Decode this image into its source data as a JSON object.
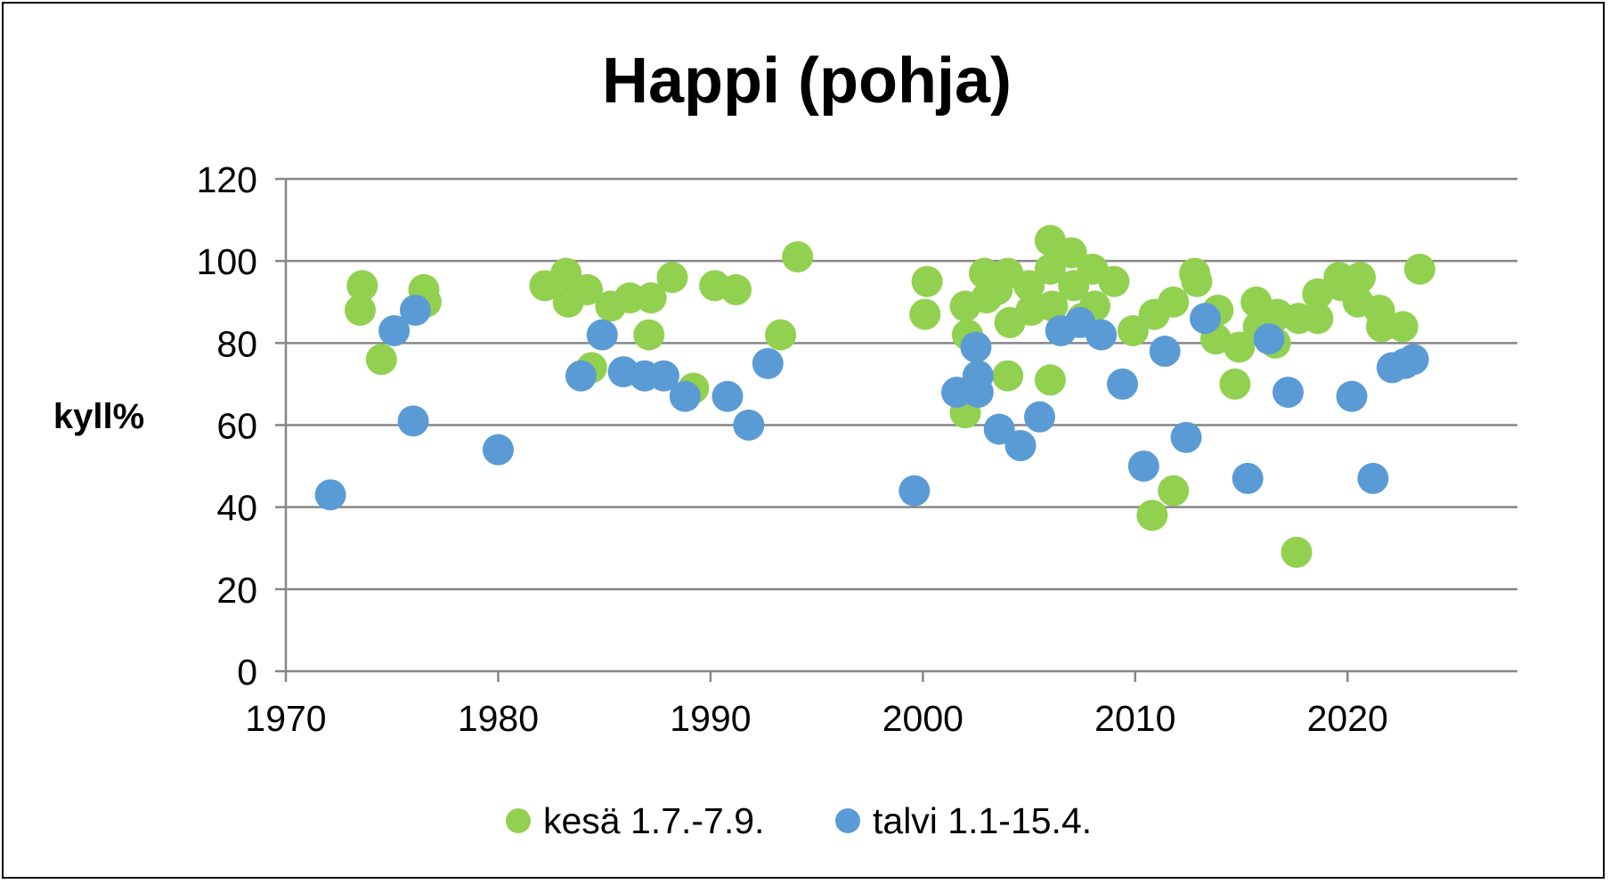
{
  "chart_data": {
    "type": "scatter",
    "title": "Happi (pohja)",
    "xlabel": "",
    "ylabel": "kyll%",
    "xlim": [
      1970,
      2028
    ],
    "ylim": [
      0,
      120
    ],
    "x_ticks": [
      "1970",
      "1980",
      "1990",
      "2000",
      "2010",
      "2020"
    ],
    "y_ticks": [
      "0",
      "20",
      "40",
      "60",
      "80",
      "100",
      "120"
    ],
    "grid": "horizontal",
    "legend_position": "bottom",
    "series": [
      {
        "name": "kesä 1.7.-7.9.",
        "color": "#92d050",
        "points": [
          [
            1973.5,
            88
          ],
          [
            1973.6,
            94
          ],
          [
            1974.5,
            76
          ],
          [
            1976.5,
            93
          ],
          [
            1976.6,
            90
          ],
          [
            1982.2,
            94
          ],
          [
            1983.2,
            97
          ],
          [
            1983.3,
            90
          ],
          [
            1984.2,
            93
          ],
          [
            1984.4,
            74
          ],
          [
            1985.3,
            89
          ],
          [
            1986.2,
            91
          ],
          [
            1987.2,
            91
          ],
          [
            1987.1,
            82
          ],
          [
            1988.2,
            96
          ],
          [
            1989.2,
            69
          ],
          [
            1990.2,
            94
          ],
          [
            1991.2,
            93
          ],
          [
            1993.3,
            82
          ],
          [
            1994.1,
            101
          ],
          [
            2000.1,
            87
          ],
          [
            2000.2,
            95
          ],
          [
            2002.0,
            89
          ],
          [
            2002.1,
            82
          ],
          [
            2002.0,
            63
          ],
          [
            2002.9,
            97
          ],
          [
            2003.0,
            91
          ],
          [
            2003.5,
            93
          ],
          [
            2004.0,
            97
          ],
          [
            2004.1,
            85
          ],
          [
            2004.0,
            72
          ],
          [
            2005.0,
            94
          ],
          [
            2005.1,
            88
          ],
          [
            2006.0,
            105
          ],
          [
            2006.0,
            98
          ],
          [
            2006.1,
            89
          ],
          [
            2006.0,
            71
          ],
          [
            2007.0,
            102
          ],
          [
            2007.1,
            94
          ],
          [
            2007.5,
            86
          ],
          [
            2008.0,
            98
          ],
          [
            2008.1,
            89
          ],
          [
            2009.0,
            95
          ],
          [
            2009.9,
            83
          ],
          [
            2010.8,
            38
          ],
          [
            2010.9,
            87
          ],
          [
            2011.8,
            90
          ],
          [
            2011.8,
            44
          ],
          [
            2012.8,
            97
          ],
          [
            2012.9,
            95
          ],
          [
            2013.8,
            81
          ],
          [
            2013.9,
            88
          ],
          [
            2014.7,
            70
          ],
          [
            2014.9,
            79
          ],
          [
            2015.7,
            90
          ],
          [
            2015.8,
            84
          ],
          [
            2016.5,
            86
          ],
          [
            2016.7,
            87
          ],
          [
            2016.6,
            80
          ],
          [
            2017.7,
            86
          ],
          [
            2017.6,
            29
          ],
          [
            2018.6,
            92
          ],
          [
            2018.6,
            86
          ],
          [
            2019.6,
            96
          ],
          [
            2019.7,
            94
          ],
          [
            2020.6,
            96
          ],
          [
            2020.5,
            90
          ],
          [
            2021.5,
            88
          ],
          [
            2021.6,
            84
          ],
          [
            2022.6,
            84
          ],
          [
            2023.4,
            98
          ]
        ]
      },
      {
        "name": "talvi 1.1-15.4.",
        "color": "#5b9bd5",
        "points": [
          [
            1972.1,
            43
          ],
          [
            1975.1,
            83
          ],
          [
            1976.1,
            88
          ],
          [
            1976.0,
            61
          ],
          [
            1980.0,
            54
          ],
          [
            1983.9,
            72
          ],
          [
            1984.9,
            82
          ],
          [
            1985.9,
            73
          ],
          [
            1986.9,
            72
          ],
          [
            1987.8,
            72
          ],
          [
            1988.8,
            67
          ],
          [
            1990.8,
            67
          ],
          [
            1991.8,
            60
          ],
          [
            1992.7,
            75
          ],
          [
            1999.6,
            44
          ],
          [
            2001.6,
            68
          ],
          [
            2002.5,
            79
          ],
          [
            2002.6,
            72
          ],
          [
            2002.6,
            68
          ],
          [
            2003.6,
            59
          ],
          [
            2004.6,
            55
          ],
          [
            2005.5,
            62
          ],
          [
            2006.5,
            83
          ],
          [
            2007.4,
            85
          ],
          [
            2008.4,
            82
          ],
          [
            2009.4,
            70
          ],
          [
            2010.4,
            50
          ],
          [
            2011.4,
            78
          ],
          [
            2012.4,
            57
          ],
          [
            2013.3,
            86
          ],
          [
            2015.3,
            47
          ],
          [
            2016.3,
            81
          ],
          [
            2017.2,
            68
          ],
          [
            2020.2,
            67
          ],
          [
            2021.2,
            47
          ],
          [
            2022.1,
            74
          ],
          [
            2022.7,
            75
          ],
          [
            2023.1,
            76
          ]
        ]
      }
    ]
  }
}
